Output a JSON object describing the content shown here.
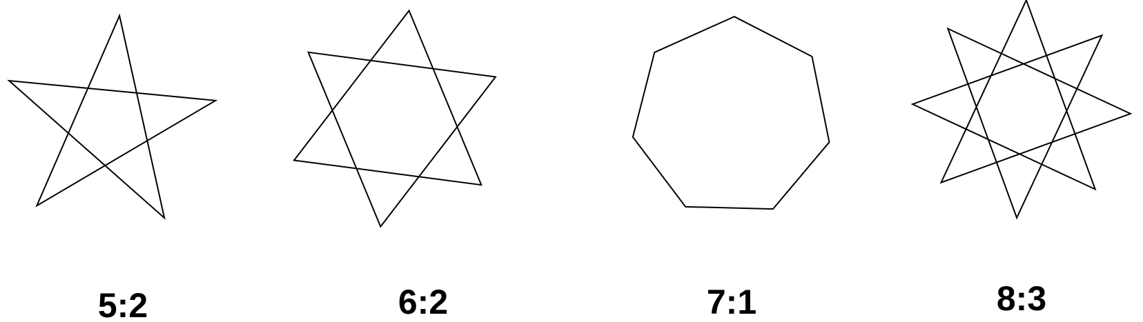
{
  "colors": {
    "background": "#ffffff",
    "stroke": "#000000",
    "label": "#000000"
  },
  "figures": [
    {
      "label": "5:2",
      "points": 5,
      "density": 2
    },
    {
      "label": "6:2",
      "points": 6,
      "density": 2
    },
    {
      "label": "7:1",
      "points": 7,
      "density": 1
    },
    {
      "label": "8:3",
      "points": 8,
      "density": 3
    }
  ]
}
